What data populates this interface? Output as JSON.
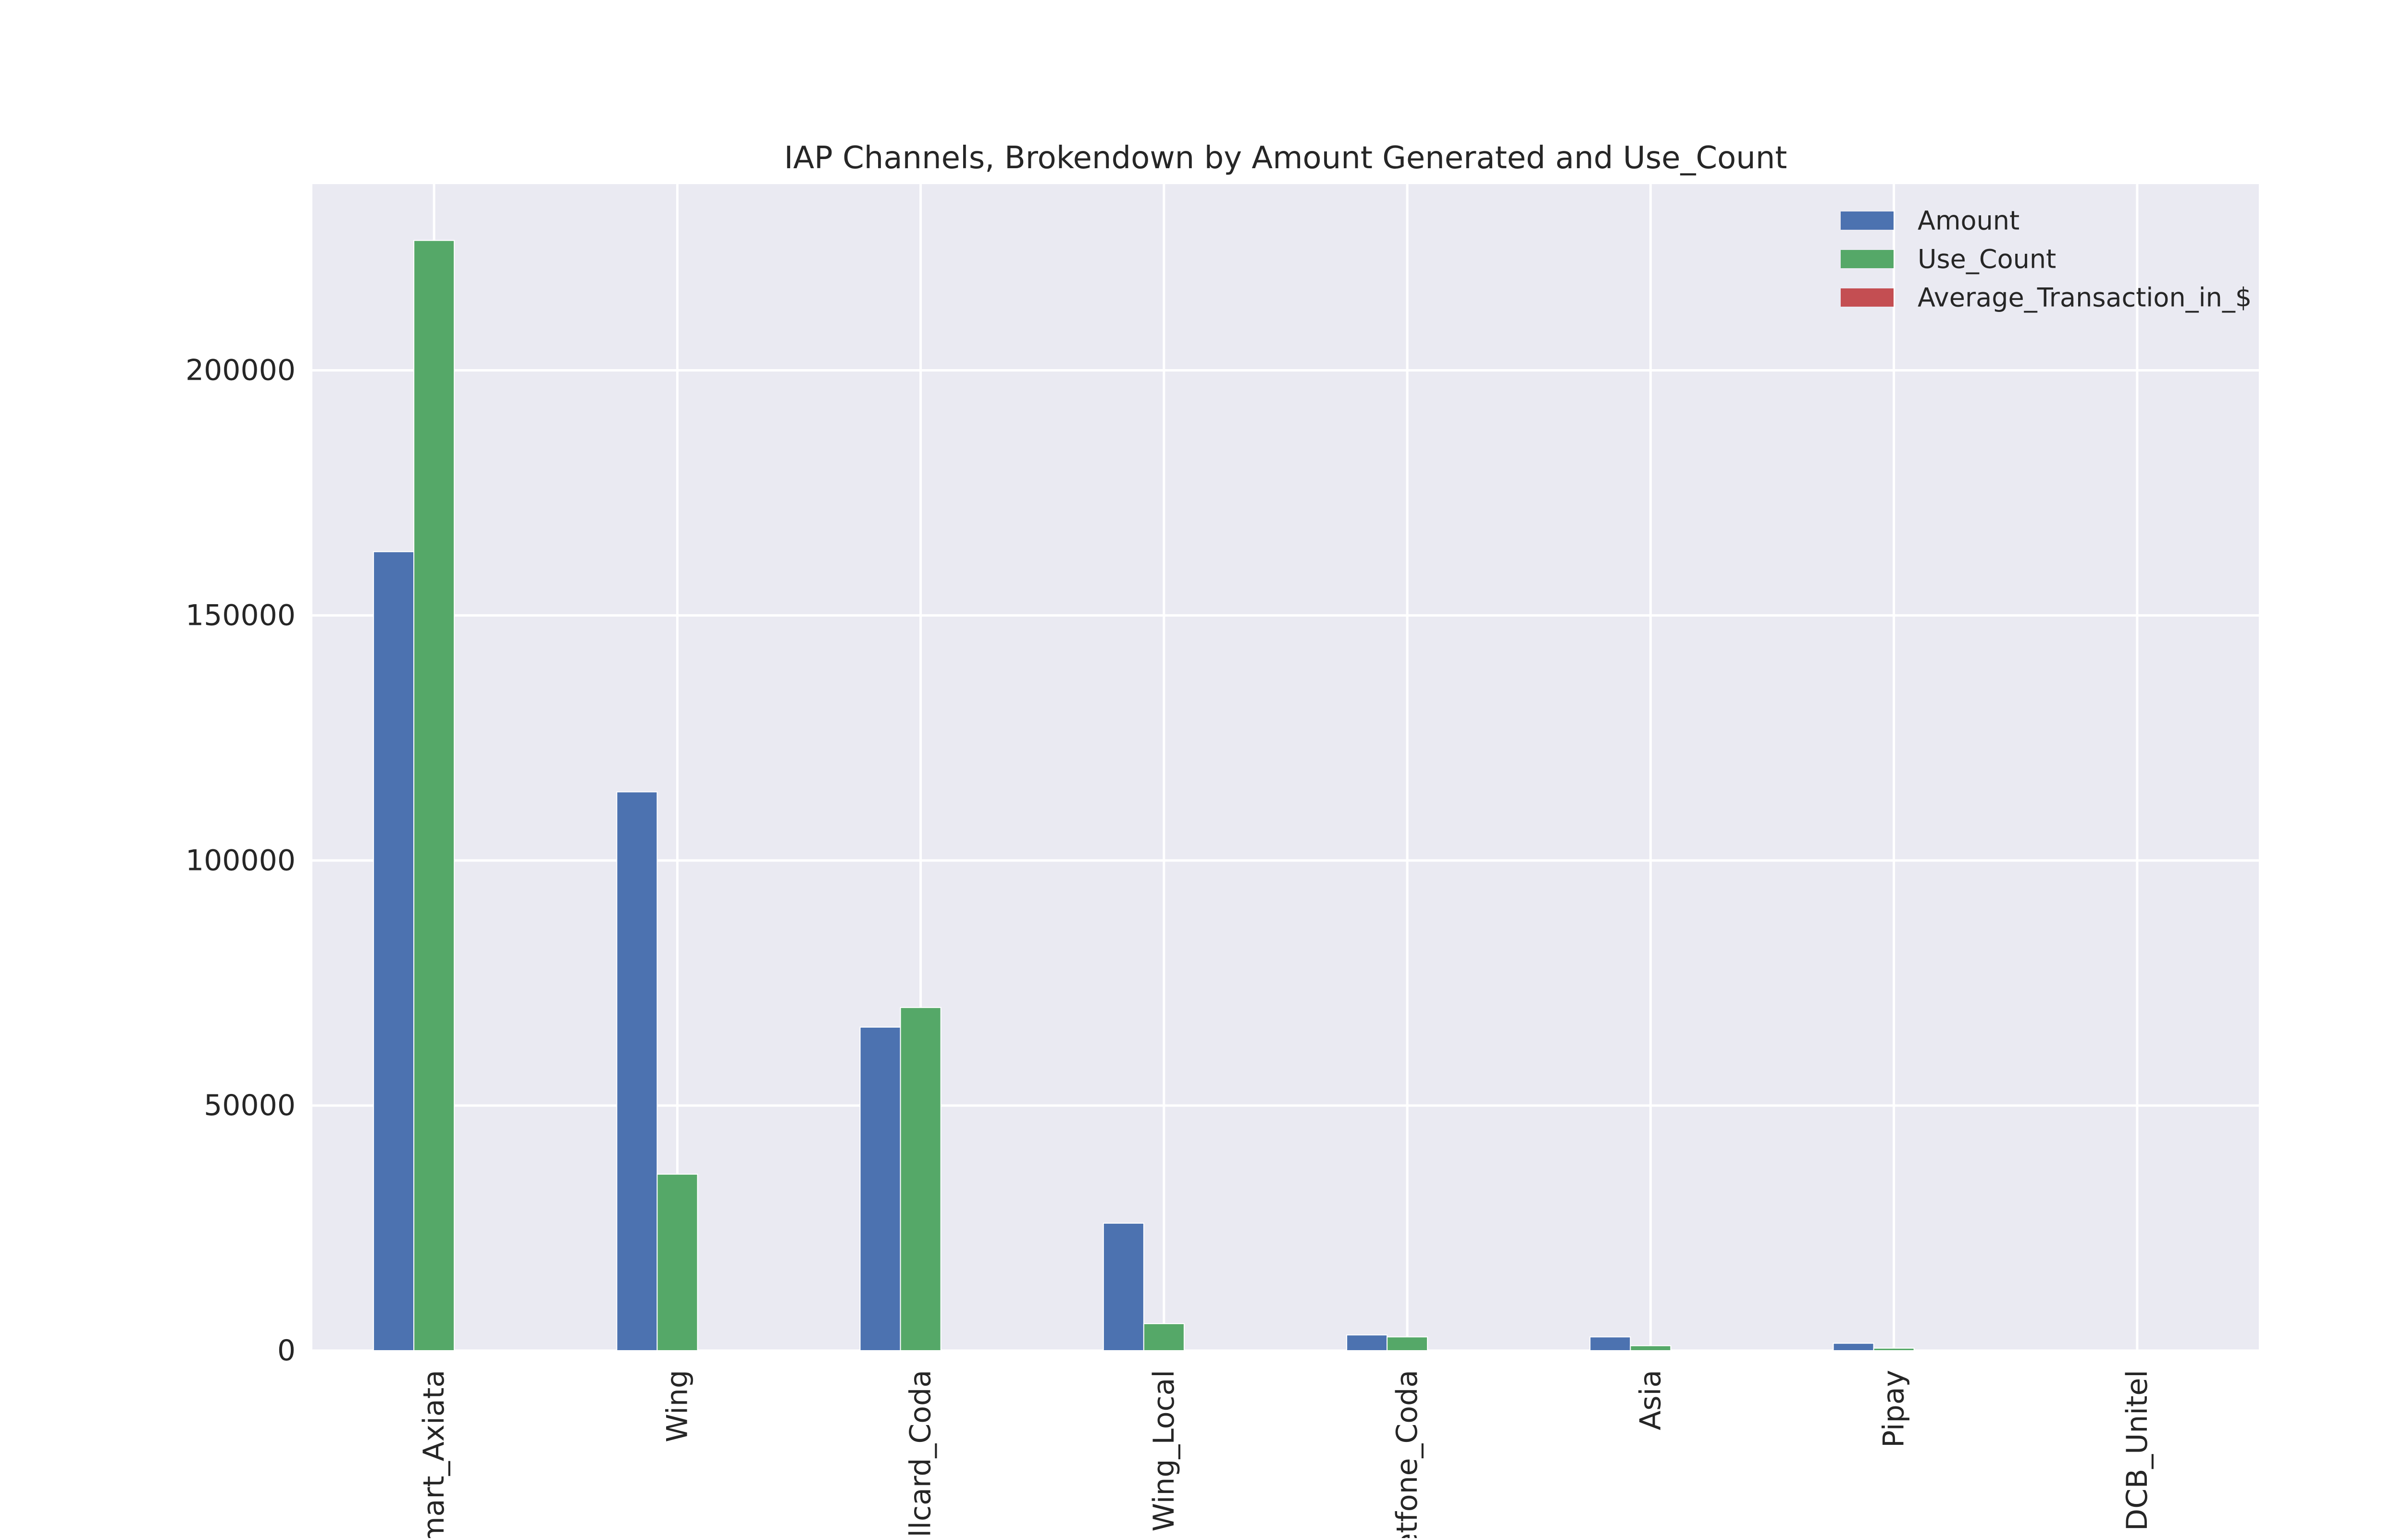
{
  "chart_data": {
    "type": "bar",
    "title": "IAP Channels, Brokendown by Amount Generated and Use_Count",
    "xlabel": "",
    "ylabel": "",
    "ylim": [
      0,
      238000
    ],
    "yticks": [
      0,
      50000,
      100000,
      150000,
      200000
    ],
    "ytick_labels": [
      "0",
      "50000",
      "100000",
      "150000",
      "200000"
    ],
    "grid": true,
    "legend_position": "top-right",
    "categories": [
      "Smart_Axiata",
      "Wing",
      "Cellcard_Coda",
      "Wing_Local",
      "Metfone_Coda",
      "Asia",
      "Pipay",
      "DCB_Unitel"
    ],
    "tick_labels_visible": [
      "Smart_Axiata",
      "Wing",
      "ellcard_Coda",
      "Wing_Local",
      "etfone_Coda",
      "Asia",
      "Pipay",
      "DCB_Unitel"
    ],
    "series": [
      {
        "name": "Amount",
        "color": "#4c72b0",
        "values": [
          163000,
          114000,
          66000,
          26000,
          3200,
          2800,
          1500,
          0
        ]
      },
      {
        "name": "Use_Count",
        "color": "#55a868",
        "values": [
          226500,
          36000,
          70000,
          5500,
          2800,
          1000,
          500,
          0
        ]
      },
      {
        "name": "Average_Transaction_in_$",
        "color": "#c44e52",
        "values": [
          1,
          3,
          1,
          5,
          1,
          3,
          3,
          0
        ]
      }
    ],
    "colors": {
      "plot_background": "#eaeaf2",
      "grid": "#ffffff",
      "text": "#262626"
    }
  }
}
